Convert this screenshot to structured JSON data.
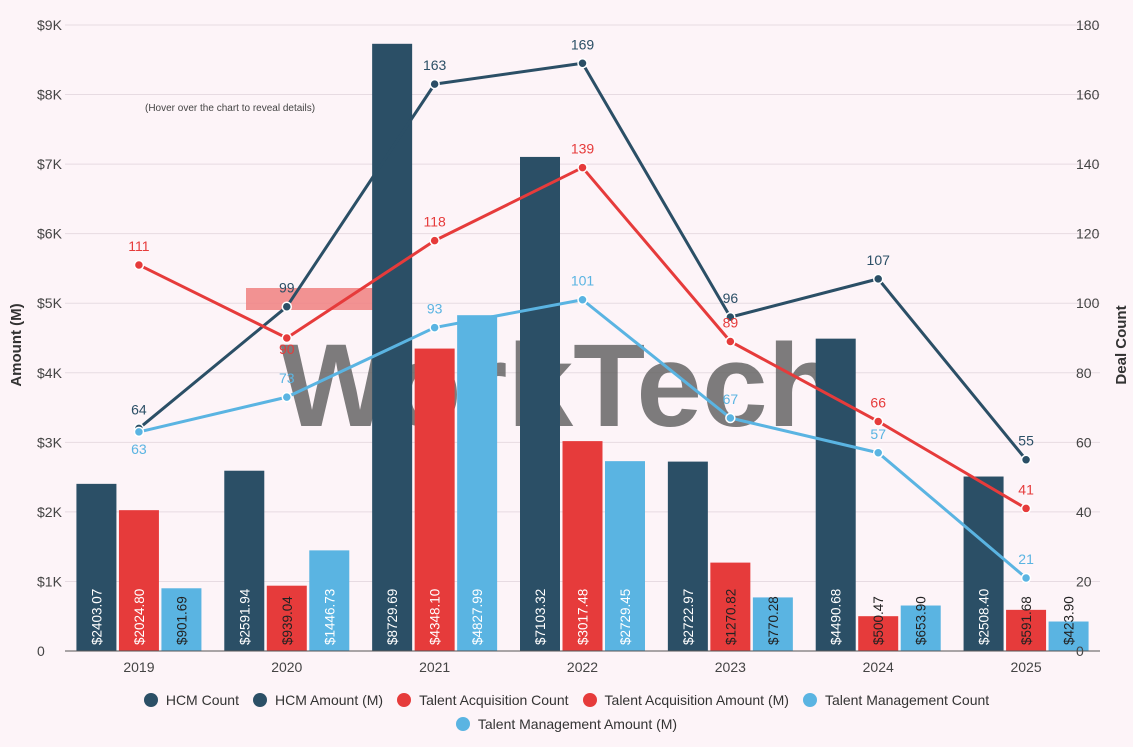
{
  "chart_data": {
    "type": "bar+line",
    "categories": [
      "2019",
      "2020",
      "2021",
      "2022",
      "2023",
      "2024",
      "2025"
    ],
    "left_axis": {
      "label": "Amount (M)",
      "range": [
        0,
        9000
      ],
      "ticks": [
        "0",
        "$1K",
        "$2K",
        "$3K",
        "$4K",
        "$5K",
        "$6K",
        "$7K",
        "$8K",
        "$9K"
      ]
    },
    "right_axis": {
      "label": "Deal Count",
      "range": [
        0,
        180
      ],
      "ticks": [
        "0",
        "20",
        "40",
        "60",
        "80",
        "100",
        "120",
        "140",
        "160",
        "180"
      ]
    },
    "bar_series": [
      {
        "name": "HCM Amount (M)",
        "color": "#2b4f66",
        "values": [
          2403.07,
          2591.94,
          8729.69,
          7103.32,
          2722.97,
          4490.68,
          2508.4
        ],
        "labels": [
          "$2403.07",
          "$2591.94",
          "$8729.69",
          "$7103.32",
          "$2722.97",
          "$4490.68",
          "$2508.40"
        ]
      },
      {
        "name": "Talent Acquisition Amount (M)",
        "color": "#e63b3b",
        "values": [
          2024.8,
          939.04,
          4348.1,
          3017.48,
          1270.82,
          500.47,
          591.68
        ],
        "labels": [
          "$2024.80",
          "$939.04",
          "$4348.10",
          "$3017.48",
          "$1270.82",
          "$500.47",
          "$591.68"
        ]
      },
      {
        "name": "Talent Management Amount (M)",
        "color": "#5ab4e2",
        "values": [
          901.69,
          1446.73,
          4827.99,
          2729.45,
          770.28,
          653.9,
          423.9
        ],
        "labels": [
          "$901.69",
          "$1446.73",
          "$4827.99",
          "$2729.45",
          "$770.28",
          "$653.90",
          "$423.90"
        ]
      }
    ],
    "line_series": [
      {
        "name": "HCM Count",
        "color": "#2b4f66",
        "values": [
          64,
          99,
          163,
          169,
          96,
          107,
          55
        ]
      },
      {
        "name": "Talent Acquisition Count",
        "color": "#e63b3b",
        "values": [
          111,
          90,
          118,
          139,
          89,
          66,
          41
        ]
      },
      {
        "name": "Talent Management Count",
        "color": "#5ab4e2",
        "values": [
          63,
          73,
          93,
          101,
          67,
          57,
          21
        ]
      }
    ],
    "annotation": "(Hover over the chart to reveal details)",
    "watermark": "WorkTech"
  },
  "legend": [
    {
      "label": "HCM Count",
      "color": "#2b4f66"
    },
    {
      "label": "HCM Amount (M)",
      "color": "#2b4f66"
    },
    {
      "label": "Talent Acquisition Count",
      "color": "#e63b3b"
    },
    {
      "label": "Talent Acquisition Amount (M)",
      "color": "#e63b3b"
    },
    {
      "label": "Talent Management Count",
      "color": "#5ab4e2"
    },
    {
      "label": "Talent Management Amount (M)",
      "color": "#5ab4e2"
    }
  ]
}
